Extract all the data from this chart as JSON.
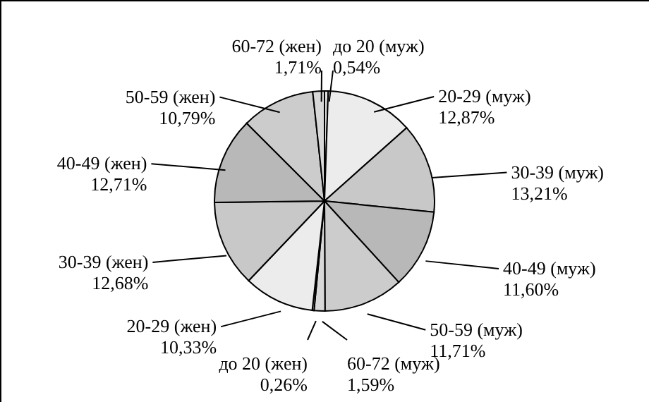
{
  "chart_data": {
    "type": "pie",
    "categories": [
      "до 20 (муж)",
      "20-29 (муж)",
      "30-39 (муж)",
      "40-49 (муж)",
      "50-59 (муж)",
      "60-72 (муж)",
      "до 20 (жен)",
      "20-29 (жен)",
      "30-39 (жен)",
      "40-49 (жен)",
      "50-59 (жен)",
      "60-72 (жен)"
    ],
    "values": [
      0.54,
      12.87,
      13.21,
      11.6,
      11.71,
      1.59,
      0.26,
      10.33,
      12.68,
      12.71,
      10.79,
      1.71
    ],
    "value_labels": [
      "0,54%",
      "12,87%",
      "13,21%",
      "11,60%",
      "11,71%",
      "1,59%",
      "0,26%",
      "10,33%",
      "12,68%",
      "12,71%",
      "10,79%",
      "1,71%"
    ],
    "colors": [
      "#e0e0e0",
      "#ececec",
      "#c8c8c8",
      "#b8b8b8",
      "#cccccc",
      "#d8d8d8",
      "#d0d0d0",
      "#ececec",
      "#c8c8c8",
      "#b8b8b8",
      "#cccccc",
      "#d8d8d8"
    ]
  }
}
